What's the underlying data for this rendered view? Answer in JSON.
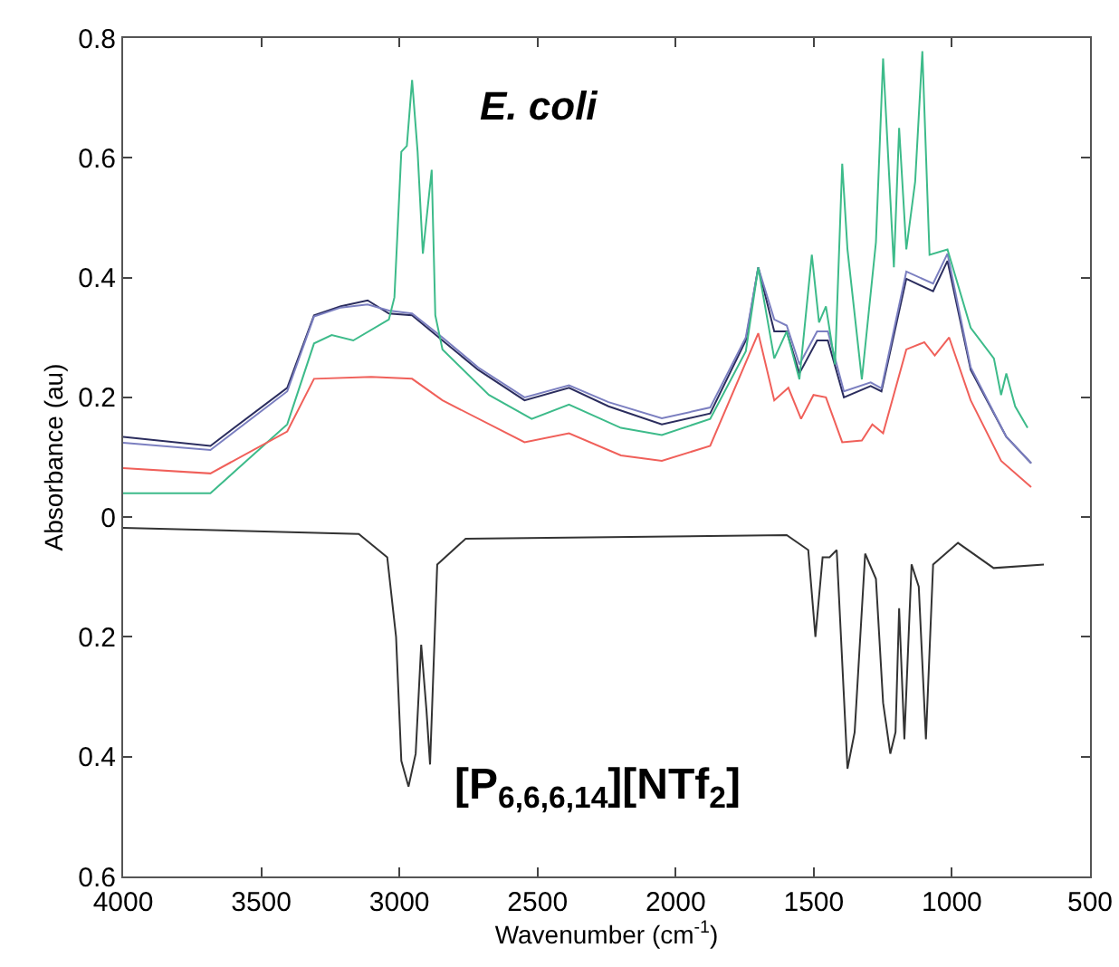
{
  "chart_data": {
    "type": "line",
    "xlabel": "Wavenumber (cm$^{-1}$)",
    "ylabel": "Absorbance (au)",
    "annotations": [
      "E. coli",
      "[P$_{6,6,6,14}$][NTf$_{2}$]"
    ],
    "xlim": [
      4000,
      500
    ],
    "xticks": [
      4000,
      3500,
      3000,
      2500,
      2000,
      1500,
      1000,
      500
    ],
    "ylim": [
      -0.6,
      0.8
    ],
    "yticks": [
      0.8,
      0.6,
      0.4,
      0.2,
      0,
      {
        "value": -0.2,
        "label": "0.2"
      },
      {
        "value": -0.4,
        "label": "0.4"
      },
      {
        "value": -0.6,
        "label": "0.6"
      }
    ],
    "grid": false,
    "marker": "none",
    "line_style": "solid",
    "series": [
      {
        "color": "#2b2d5e",
        "x": [
          4000,
          3684,
          3406,
          3309,
          3212,
          3115,
          3038,
          2954,
          2844,
          2715,
          2547,
          2386,
          2243,
          2050,
          1875,
          1746,
          1701,
          1643,
          1598,
          1552,
          1488,
          1449,
          1391,
          1294,
          1255,
          1165,
          1068,
          1016,
          932,
          803,
          713
        ],
        "values": [
          0.134,
          0.119,
          0.216,
          0.337,
          0.352,
          0.362,
          0.34,
          0.337,
          0.295,
          0.246,
          0.195,
          0.216,
          0.185,
          0.155,
          0.173,
          0.295,
          0.417,
          0.31,
          0.31,
          0.24,
          0.295,
          0.295,
          0.2,
          0.219,
          0.21,
          0.398,
          0.377,
          0.428,
          0.246,
          0.134,
          0.09
        ]
      },
      {
        "color": "#7b7fc0",
        "x": [
          4000,
          3684,
          3406,
          3309,
          3212,
          3115,
          3038,
          2954,
          2844,
          2715,
          2547,
          2386,
          2243,
          2050,
          1875,
          1746,
          1701,
          1643,
          1598,
          1552,
          1488,
          1449,
          1391,
          1294,
          1255,
          1165,
          1068,
          1016,
          932,
          803,
          713
        ],
        "values": [
          0.124,
          0.112,
          0.21,
          0.335,
          0.35,
          0.355,
          0.345,
          0.34,
          0.3,
          0.25,
          0.2,
          0.22,
          0.192,
          0.165,
          0.183,
          0.3,
          0.417,
          0.33,
          0.32,
          0.255,
          0.31,
          0.31,
          0.21,
          0.225,
          0.215,
          0.41,
          0.39,
          0.44,
          0.25,
          0.134,
          0.09
        ]
      },
      {
        "color": "#3dbb8a",
        "x": [
          4000,
          3684,
          3406,
          3309,
          3245,
          3167,
          3038,
          3018,
          2993,
          2973,
          2954,
          2934,
          2915,
          2883,
          2870,
          2844,
          2676,
          2521,
          2386,
          2198,
          2050,
          1875,
          1746,
          1701,
          1643,
          1598,
          1552,
          1507,
          1481,
          1456,
          1423,
          1397,
          1378,
          1326,
          1275,
          1249,
          1210,
          1191,
          1165,
          1133,
          1107,
          1081,
          1016,
          932,
          848,
          822,
          803,
          771,
          726
        ],
        "values": [
          0.04,
          0.04,
          0.155,
          0.29,
          0.304,
          0.295,
          0.33,
          0.367,
          0.61,
          0.62,
          0.73,
          0.61,
          0.44,
          0.58,
          0.337,
          0.28,
          0.204,
          0.164,
          0.188,
          0.149,
          0.137,
          0.164,
          0.277,
          0.417,
          0.265,
          0.31,
          0.23,
          0.438,
          0.325,
          0.352,
          0.255,
          0.59,
          0.447,
          0.23,
          0.459,
          0.766,
          0.417,
          0.65,
          0.447,
          0.56,
          0.778,
          0.438,
          0.447,
          0.316,
          0.265,
          0.204,
          0.24,
          0.185,
          0.149
        ]
      },
      {
        "color": "#f0605a",
        "x": [
          4000,
          3684,
          3406,
          3309,
          3102,
          2954,
          2844,
          2547,
          2386,
          2198,
          2050,
          1875,
          1701,
          1643,
          1592,
          1546,
          1501,
          1456,
          1397,
          1326,
          1288,
          1249,
          1165,
          1100,
          1062,
          1010,
          932,
          822,
          713
        ],
        "values": [
          0.082,
          0.073,
          0.143,
          0.231,
          0.234,
          0.231,
          0.195,
          0.125,
          0.14,
          0.103,
          0.094,
          0.119,
          0.307,
          0.195,
          0.216,
          0.164,
          0.204,
          0.2,
          0.125,
          0.128,
          0.155,
          0.14,
          0.28,
          0.292,
          0.27,
          0.3,
          0.195,
          0.094,
          0.05
        ]
      },
      {
        "color": "#333333",
        "x": [
          4000,
          3147,
          3044,
          3012,
          2993,
          2967,
          2941,
          2921,
          2902,
          2889,
          2863,
          2760,
          1598,
          1520,
          1494,
          1468,
          1443,
          1417,
          1378,
          1352,
          1314,
          1275,
          1249,
          1223,
          1204,
          1191,
          1172,
          1146,
          1120,
          1094,
          1068,
          978,
          849,
          667
        ],
        "values": [
          -0.018,
          -0.028,
          -0.067,
          -0.2,
          -0.407,
          -0.45,
          -0.395,
          -0.213,
          -0.322,
          -0.413,
          -0.079,
          -0.036,
          -0.03,
          -0.055,
          -0.2,
          -0.067,
          -0.067,
          -0.055,
          -0.42,
          -0.359,
          -0.061,
          -0.103,
          -0.31,
          -0.395,
          -0.359,
          -0.152,
          -0.371,
          -0.079,
          -0.116,
          -0.371,
          -0.079,
          -0.043,
          -0.085,
          -0.079
        ]
      }
    ]
  }
}
